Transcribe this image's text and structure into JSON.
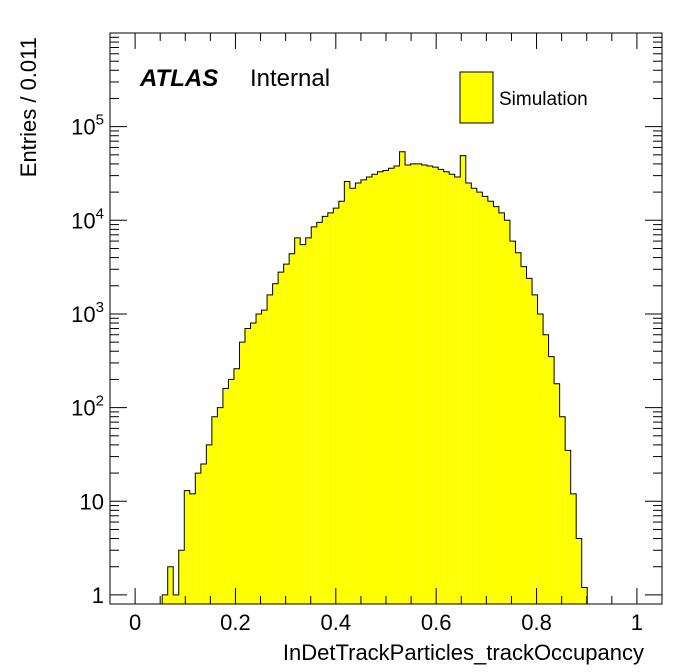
{
  "chart_data": {
    "type": "bar",
    "title": "",
    "xlabel": "InDetTrackParticles_trackOccupancy",
    "ylabel": "Entries / 0.011",
    "xlim": [
      -0.05,
      1.05
    ],
    "ylim": [
      0.8,
      1000000
    ],
    "yscale": "log",
    "grid": false,
    "x_ticks": [
      0,
      0.2,
      0.4,
      0.6,
      0.8,
      1
    ],
    "x_tick_labels": [
      "0",
      "0.2",
      "0.4",
      "0.6",
      "0.8",
      "1"
    ],
    "y_tick_labels": [
      {
        "value": 1,
        "base": "1",
        "exp": ""
      },
      {
        "value": 10,
        "base": "10",
        "exp": ""
      },
      {
        "value": 100,
        "base": "10",
        "exp": "2"
      },
      {
        "value": 1000,
        "base": "10",
        "exp": "3"
      },
      {
        "value": 10000,
        "base": "10",
        "exp": "4"
      },
      {
        "value": 100000,
        "base": "10",
        "exp": "5"
      }
    ],
    "bin_width": 0.011,
    "bins_start": [
      0.054,
      0.065,
      0.076,
      0.087,
      0.098,
      0.109,
      0.12,
      0.131,
      0.142,
      0.153,
      0.164,
      0.175,
      0.186,
      0.197,
      0.208,
      0.219,
      0.23,
      0.241,
      0.252,
      0.263,
      0.274,
      0.285,
      0.296,
      0.307,
      0.318,
      0.329,
      0.34,
      0.351,
      0.362,
      0.373,
      0.384,
      0.395,
      0.406,
      0.417,
      0.428,
      0.439,
      0.45,
      0.461,
      0.472,
      0.483,
      0.494,
      0.505,
      0.516,
      0.527,
      0.538,
      0.549,
      0.56,
      0.571,
      0.582,
      0.593,
      0.604,
      0.615,
      0.626,
      0.637,
      0.648,
      0.659,
      0.67,
      0.681,
      0.692,
      0.703,
      0.714,
      0.725,
      0.736,
      0.747,
      0.758,
      0.769,
      0.78,
      0.791,
      0.802,
      0.813,
      0.824,
      0.835,
      0.846,
      0.857,
      0.868,
      0.879,
      0.89,
      0.901
    ],
    "series": [
      {
        "name": "Simulation",
        "color": "#ffff00",
        "values": [
          1,
          2,
          1,
          3,
          13,
          12,
          20,
          25,
          40,
          80,
          100,
          160,
          200,
          260,
          500,
          700,
          800,
          1000,
          1100,
          1600,
          2100,
          2800,
          3400,
          4400,
          6500,
          5500,
          6500,
          8500,
          9500,
          11000,
          12000,
          13500,
          16000,
          26000,
          22000,
          25000,
          27000,
          29000,
          31000,
          33000,
          34000,
          36000,
          38000,
          54000,
          39000,
          40000,
          40000,
          39000,
          38000,
          37000,
          35000,
          33000,
          31000,
          29000,
          49000,
          25000,
          22000,
          20000,
          18000,
          16000,
          14000,
          12000,
          10000,
          6000,
          4500,
          3200,
          2400,
          1600,
          1000,
          600,
          350,
          180,
          80,
          35,
          12,
          4,
          1.2,
          0
        ]
      }
    ],
    "annotations": {
      "atlas": "ATLAS",
      "internal": "Internal"
    },
    "legend": {
      "position": "top-right",
      "entries": [
        "Simulation"
      ]
    }
  }
}
